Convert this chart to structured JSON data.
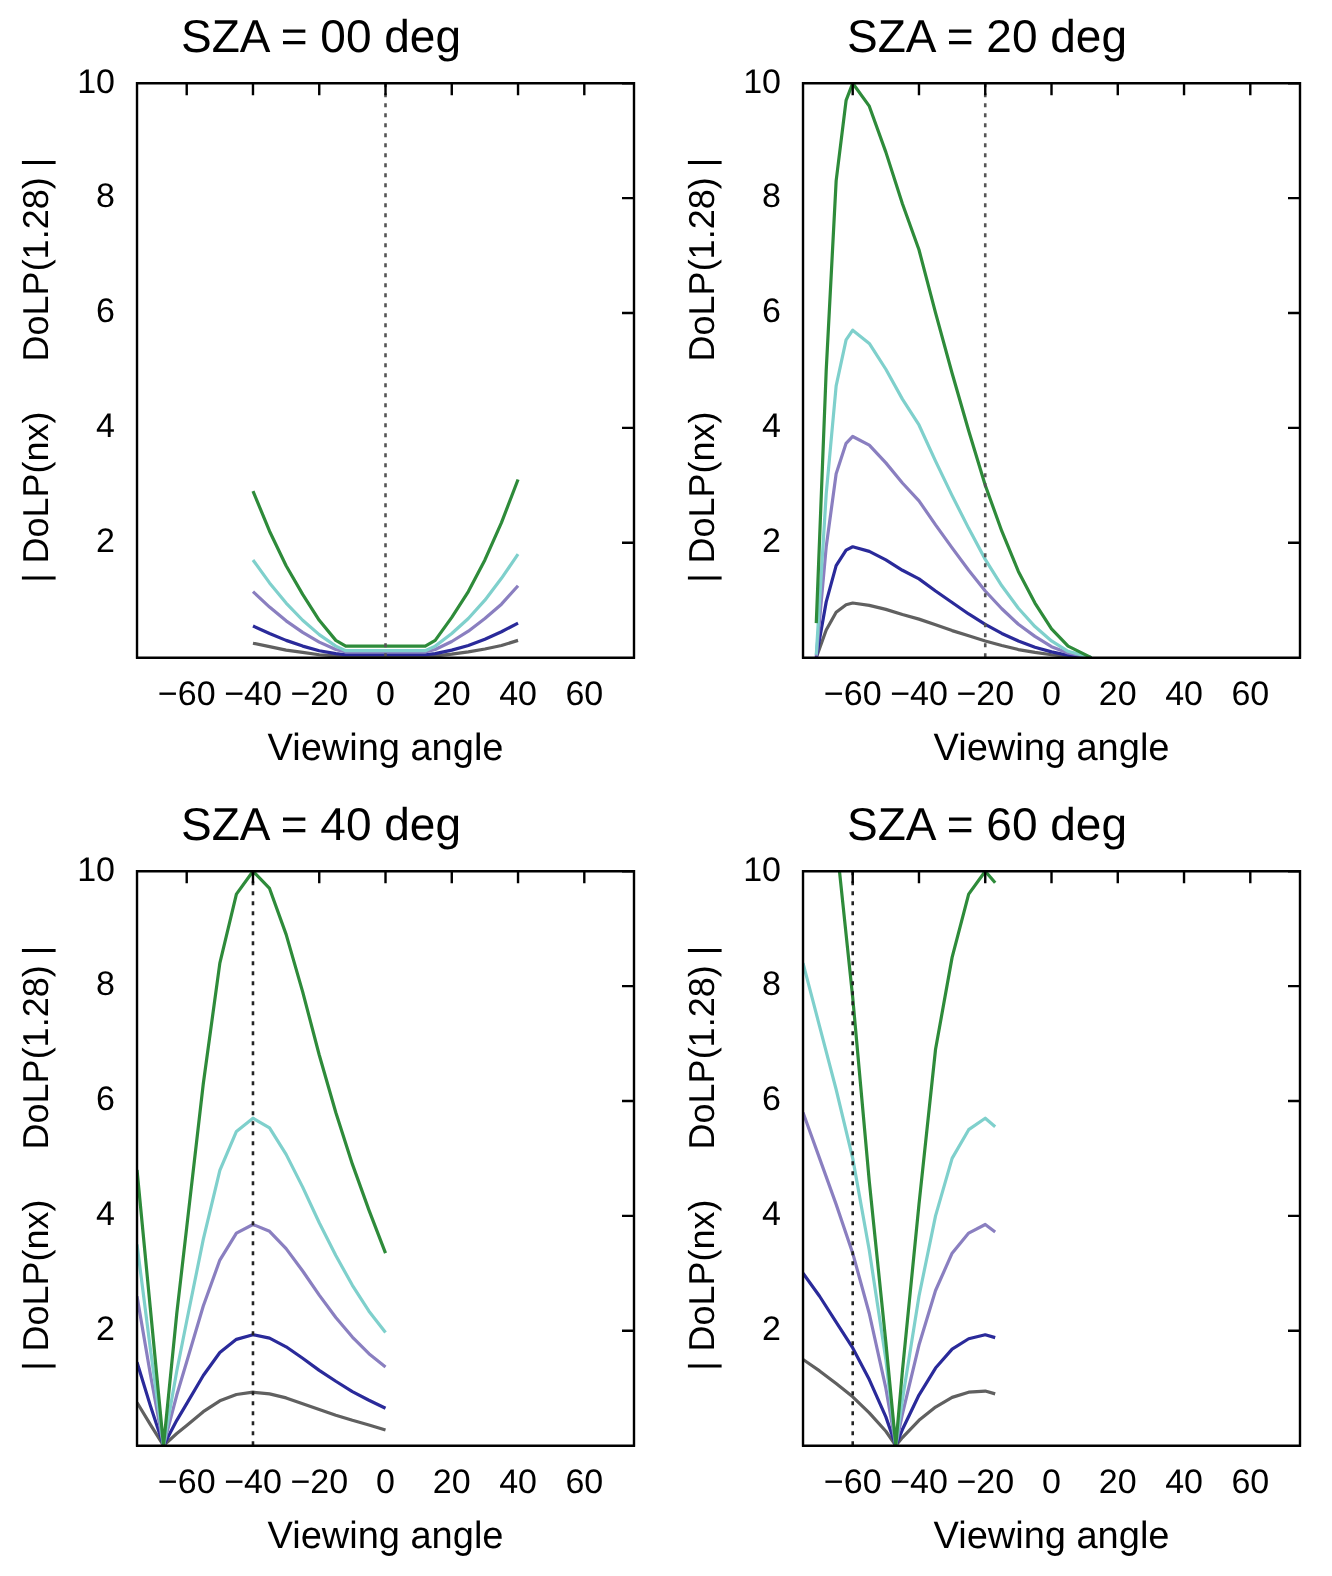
{
  "chart_data": [
    {
      "type": "line",
      "title": "SZA = 00 deg",
      "xlabel": "Viewing angle",
      "ylabel": "| DoLP(nx)     DoLP(1.28) |",
      "xlim": [
        -75,
        75
      ],
      "xticks": [
        -60,
        -40,
        -20,
        0,
        20,
        40,
        60
      ],
      "ylim": [
        0,
        10
      ],
      "yticks": [
        2,
        4,
        6,
        8,
        10
      ],
      "marker": "none",
      "ref_lines": [
        {
          "axis": "x",
          "value": 0,
          "line_style": "dotted",
          "color": "#555555"
        }
      ],
      "series": [
        {
          "color": "#2e8b3a",
          "x": [
            -40,
            -35,
            -30,
            -25,
            -20,
            -15,
            -12,
            0,
            12,
            15,
            20,
            25,
            30,
            35,
            40
          ],
          "values": [
            2.9,
            2.2,
            1.6,
            1.1,
            0.65,
            0.3,
            0.2,
            0.2,
            0.2,
            0.3,
            0.7,
            1.15,
            1.7,
            2.35,
            3.1
          ]
        },
        {
          "color": "#7fd0cc",
          "x": [
            -40,
            -35,
            -30,
            -25,
            -20,
            -15,
            -12,
            0,
            12,
            15,
            20,
            25,
            30,
            35,
            40
          ],
          "values": [
            1.7,
            1.3,
            0.95,
            0.65,
            0.4,
            0.2,
            0.12,
            0.12,
            0.12,
            0.2,
            0.42,
            0.68,
            1.0,
            1.38,
            1.8
          ]
        },
        {
          "color": "#8a7fc0",
          "x": [
            -40,
            -35,
            -30,
            -25,
            -20,
            -15,
            -12,
            0,
            12,
            15,
            20,
            25,
            30,
            35,
            40
          ],
          "values": [
            1.15,
            0.88,
            0.64,
            0.44,
            0.27,
            0.14,
            0.1,
            0.1,
            0.1,
            0.14,
            0.28,
            0.46,
            0.68,
            0.93,
            1.25
          ]
        },
        {
          "color": "#2a2a9a",
          "x": [
            -40,
            -35,
            -30,
            -25,
            -20,
            -15,
            -12,
            0,
            12,
            15,
            20,
            25,
            30,
            35,
            40
          ],
          "values": [
            0.55,
            0.42,
            0.3,
            0.2,
            0.12,
            0.07,
            0.05,
            0.05,
            0.05,
            0.07,
            0.13,
            0.21,
            0.32,
            0.45,
            0.6
          ]
        },
        {
          "color": "#606060",
          "x": [
            -40,
            -35,
            -30,
            -25,
            -20,
            -15,
            -12,
            0,
            12,
            15,
            20,
            25,
            30,
            35,
            40
          ],
          "values": [
            0.25,
            0.19,
            0.13,
            0.09,
            0.05,
            0.03,
            0.02,
            0.02,
            0.02,
            0.03,
            0.06,
            0.1,
            0.15,
            0.21,
            0.3
          ]
        }
      ]
    },
    {
      "type": "line",
      "title": "SZA = 20 deg",
      "xlabel": "Viewing angle",
      "ylabel": "| DoLP(nx)     DoLP(1.28) |",
      "xlim": [
        -75,
        75
      ],
      "xticks": [
        -60,
        -40,
        -20,
        0,
        20,
        40,
        60
      ],
      "ylim": [
        0,
        10
      ],
      "yticks": [
        2,
        4,
        6,
        8,
        10
      ],
      "marker": "none",
      "ref_lines": [
        {
          "axis": "x",
          "value": -20,
          "line_style": "dotted",
          "color": "#555555"
        }
      ],
      "series": [
        {
          "color": "#2e8b3a",
          "x": [
            -71,
            -68,
            -65,
            -62,
            -60,
            -55,
            -50,
            -45,
            -40,
            -35,
            -30,
            -25,
            -20,
            -15,
            -10,
            -5,
            0,
            5,
            12
          ],
          "values": [
            0.6,
            5,
            8.3,
            9.7,
            10,
            9.6,
            8.8,
            7.9,
            7.1,
            6.0,
            4.95,
            3.95,
            3.0,
            2.2,
            1.5,
            0.95,
            0.5,
            0.2,
            0
          ]
        },
        {
          "color": "#7fd0cc",
          "x": [
            -71,
            -68,
            -65,
            -62,
            -60,
            -55,
            -50,
            -45,
            -40,
            -35,
            -30,
            -25,
            -20,
            -15,
            -10,
            -5,
            0,
            5,
            12
          ],
          "values": [
            0.05,
            2.85,
            4.73,
            5.53,
            5.7,
            5.47,
            5.02,
            4.5,
            4.05,
            3.42,
            2.82,
            2.25,
            1.71,
            1.25,
            0.86,
            0.54,
            0.29,
            0.11,
            0
          ]
        },
        {
          "color": "#8a7fc0",
          "x": [
            -71,
            -68,
            -65,
            -62,
            -60,
            -55,
            -50,
            -45,
            -40,
            -35,
            -30,
            -25,
            -20,
            -15,
            -10,
            -5,
            0,
            5,
            12
          ],
          "values": [
            0.02,
            1.93,
            3.2,
            3.73,
            3.85,
            3.7,
            3.39,
            3.04,
            2.73,
            2.31,
            1.91,
            1.52,
            1.16,
            0.85,
            0.58,
            0.37,
            0.19,
            0.08,
            0
          ]
        },
        {
          "color": "#2a2a9a",
          "x": [
            -71,
            -68,
            -65,
            -62,
            -60,
            -55,
            -50,
            -45,
            -40,
            -35,
            -30,
            -25,
            -20,
            -15,
            -10,
            -5,
            0,
            5,
            12
          ],
          "values": [
            0,
            0.97,
            1.6,
            1.87,
            1.93,
            1.85,
            1.7,
            1.52,
            1.37,
            1.16,
            0.96,
            0.76,
            0.58,
            0.42,
            0.29,
            0.18,
            0.1,
            0.04,
            0
          ]
        },
        {
          "color": "#606060",
          "x": [
            -71,
            -68,
            -65,
            -62,
            -60,
            -55,
            -50,
            -45,
            -40,
            -35,
            -30,
            -25,
            -20,
            -15,
            -10,
            -5,
            0,
            5,
            12
          ],
          "values": [
            0,
            0.48,
            0.79,
            0.92,
            0.95,
            0.91,
            0.84,
            0.75,
            0.67,
            0.57,
            0.47,
            0.38,
            0.29,
            0.21,
            0.14,
            0.09,
            0.05,
            0.02,
            0
          ]
        }
      ]
    },
    {
      "type": "line",
      "title": "SZA = 40 deg",
      "xlabel": "Viewing angle",
      "ylabel": "| DoLP(nx)     DoLP(1.28) |",
      "xlim": [
        -75,
        75
      ],
      "xticks": [
        -60,
        -40,
        -20,
        0,
        20,
        40,
        60
      ],
      "ylim": [
        0,
        10
      ],
      "yticks": [
        2,
        4,
        6,
        8,
        10
      ],
      "marker": "none",
      "ref_lines": [
        {
          "axis": "x",
          "value": -40,
          "line_style": "dotted",
          "color": "#222222"
        }
      ],
      "series": [
        {
          "color": "#2e8b3a",
          "x": [
            -75,
            -71,
            -67,
            -63,
            -60,
            -55,
            -50,
            -45,
            -40,
            -35,
            -30,
            -25,
            -20,
            -15,
            -10,
            -5,
            0
          ],
          "values": [
            4.8,
            2.4,
            0,
            2.3,
            3.8,
            6.3,
            8.4,
            9.6,
            10,
            9.7,
            8.9,
            7.9,
            6.8,
            5.8,
            4.9,
            4.1,
            3.35
          ]
        },
        {
          "color": "#7fd0cc",
          "x": [
            -75,
            -71,
            -67,
            -63,
            -60,
            -55,
            -50,
            -45,
            -40,
            -35,
            -30,
            -25,
            -20,
            -15,
            -10,
            -5,
            0
          ],
          "values": [
            3.5,
            1.7,
            0,
            1.3,
            2.17,
            3.59,
            4.79,
            5.47,
            5.7,
            5.53,
            5.07,
            4.5,
            3.88,
            3.31,
            2.79,
            2.34,
            1.97
          ]
        },
        {
          "color": "#8a7fc0",
          "x": [
            -75,
            -71,
            -67,
            -63,
            -60,
            -55,
            -50,
            -45,
            -40,
            -35,
            -30,
            -25,
            -20,
            -15,
            -10,
            -5,
            0
          ],
          "values": [
            2.6,
            1.25,
            0,
            0.88,
            1.46,
            2.43,
            3.23,
            3.7,
            3.85,
            3.73,
            3.43,
            3.04,
            2.62,
            2.23,
            1.89,
            1.6,
            1.37
          ]
        },
        {
          "color": "#2a2a9a",
          "x": [
            -75,
            -71,
            -67,
            -63,
            -60,
            -55,
            -50,
            -45,
            -40,
            -35,
            -30,
            -25,
            -20,
            -15,
            -10,
            -5,
            0
          ],
          "values": [
            1.45,
            0.7,
            0,
            0.44,
            0.73,
            1.22,
            1.62,
            1.85,
            1.93,
            1.87,
            1.72,
            1.52,
            1.31,
            1.12,
            0.94,
            0.79,
            0.65
          ]
        },
        {
          "color": "#606060",
          "x": [
            -75,
            -71,
            -67,
            -63,
            -60,
            -55,
            -50,
            -45,
            -40,
            -35,
            -30,
            -25,
            -20,
            -15,
            -10,
            -5,
            0
          ],
          "values": [
            0.75,
            0.37,
            0,
            0.21,
            0.35,
            0.59,
            0.78,
            0.89,
            0.93,
            0.9,
            0.83,
            0.73,
            0.63,
            0.53,
            0.44,
            0.36,
            0.27
          ]
        }
      ]
    },
    {
      "type": "line",
      "title": "SZA = 60 deg",
      "xlabel": "Viewing angle",
      "ylabel": "| DoLP(nx)     DoLP(1.28) |",
      "xlim": [
        -75,
        75
      ],
      "xticks": [
        -60,
        -40,
        -20,
        0,
        20,
        40,
        60
      ],
      "ylim": [
        0,
        10
      ],
      "yticks": [
        2,
        4,
        6,
        8,
        10
      ],
      "marker": "none",
      "ref_lines": [
        {
          "axis": "x",
          "value": -60,
          "line_style": "dotted",
          "color": "#222222"
        }
      ],
      "series": [
        {
          "color": "#2e8b3a",
          "x": [
            -64,
            -60,
            -55,
            -50,
            -47,
            -45,
            -40,
            -35,
            -30,
            -25,
            -20,
            -17
          ],
          "values": [
            10,
            7.8,
            4.6,
            1.8,
            0,
            1.3,
            4.2,
            6.9,
            8.5,
            9.6,
            10,
            9.8
          ]
        },
        {
          "color": "#7fd0cc",
          "x": [
            -75,
            -70,
            -65,
            -60,
            -55,
            -50,
            -47,
            -45,
            -40,
            -35,
            -30,
            -25,
            -20,
            -17
          ],
          "values": [
            8.4,
            7.3,
            6.2,
            5.0,
            3.4,
            1.5,
            0,
            0.8,
            2.6,
            4.0,
            5.0,
            5.5,
            5.7,
            5.55
          ]
        },
        {
          "color": "#8a7fc0",
          "x": [
            -75,
            -70,
            -65,
            -60,
            -55,
            -50,
            -47,
            -45,
            -40,
            -35,
            -30,
            -25,
            -20,
            -17
          ],
          "values": [
            5.8,
            5.0,
            4.2,
            3.35,
            2.3,
            1.0,
            0,
            0.55,
            1.75,
            2.7,
            3.35,
            3.7,
            3.85,
            3.72
          ]
        },
        {
          "color": "#2a2a9a",
          "x": [
            -75,
            -70,
            -65,
            -60,
            -55,
            -50,
            -47,
            -45,
            -40,
            -35,
            -30,
            -25,
            -20,
            -17
          ],
          "values": [
            3.0,
            2.6,
            2.15,
            1.7,
            1.15,
            0.5,
            0,
            0.28,
            0.88,
            1.35,
            1.68,
            1.86,
            1.93,
            1.88
          ]
        },
        {
          "color": "#606060",
          "x": [
            -75,
            -70,
            -65,
            -60,
            -55,
            -50,
            -47,
            -45,
            -40,
            -35,
            -30,
            -25,
            -20,
            -17
          ],
          "values": [
            1.5,
            1.3,
            1.08,
            0.85,
            0.57,
            0.25,
            0,
            0.14,
            0.44,
            0.67,
            0.84,
            0.93,
            0.95,
            0.9
          ]
        }
      ]
    }
  ]
}
